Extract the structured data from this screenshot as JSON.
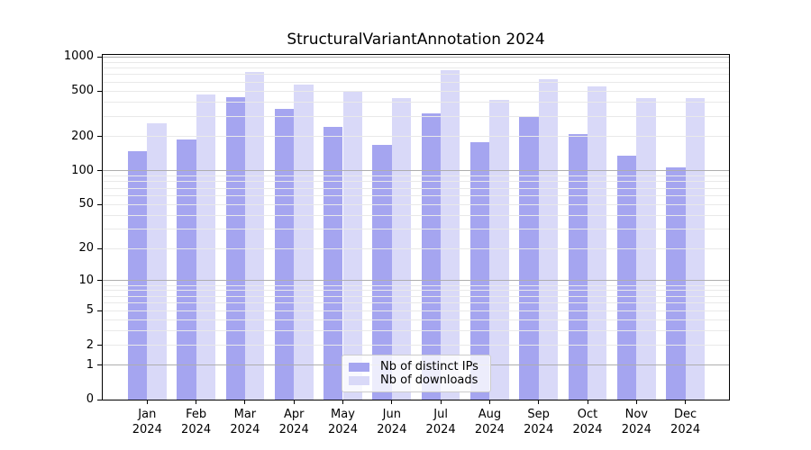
{
  "chart_data": {
    "type": "bar",
    "title": "StructuralVariantAnnotation 2024",
    "year": "2024",
    "categories": [
      "Jan",
      "Feb",
      "Mar",
      "Apr",
      "May",
      "Jun",
      "Jul",
      "Aug",
      "Sep",
      "Oct",
      "Nov",
      "Dec"
    ],
    "series": [
      {
        "name": "Nb of distinct IPs",
        "color": "#a5a5f0",
        "values": [
          149,
          190,
          441,
          352,
          244,
          169,
          321,
          180,
          304,
          209,
          136,
          107
        ]
      },
      {
        "name": "Nb of downloads",
        "color": "#d9d9f8",
        "values": [
          260,
          468,
          734,
          570,
          492,
          438,
          761,
          420,
          634,
          551,
          433,
          440
        ]
      }
    ],
    "xlabel": "",
    "ylabel": "",
    "yscale": "log1p",
    "ylim": [
      0,
      1060
    ],
    "yticks": [
      0,
      1,
      2,
      5,
      10,
      20,
      50,
      100,
      200,
      500,
      1000
    ],
    "grid": "major-and-minor, drawn above bars",
    "legend_position": "lower center",
    "colors": {
      "major_grid": "#aeaeae",
      "minor_grid": "#e9e9e9",
      "axis": "#000000",
      "legend_border": "#cccccc"
    }
  }
}
